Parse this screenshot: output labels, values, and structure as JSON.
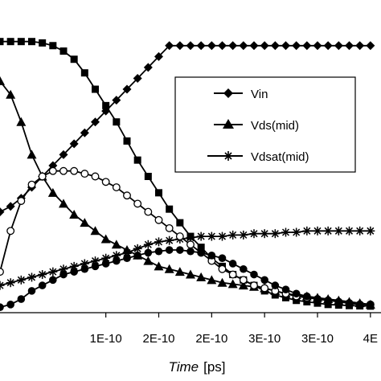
{
  "chart_data": {
    "type": "line",
    "xlabel": {
      "italic": "Time",
      "unit": "[ps]"
    },
    "x_tick_labels": [
      "1E-10",
      "2E-10",
      "2E-10",
      "3E-10",
      "3E-10",
      "4E"
    ],
    "x_tick_values": [
      0.1,
      0.15,
      0.2,
      0.25,
      0.3,
      0.35
    ],
    "xlim": [
      0.0,
      0.36
    ],
    "ylim": [
      0.0,
      1.0
    ],
    "grid": false,
    "legend_placement": "top-right",
    "series": [
      {
        "name": "Vin",
        "marker": "diamond",
        "x": [
          0.0,
          0.01,
          0.02,
          0.03,
          0.04,
          0.05,
          0.06,
          0.07,
          0.08,
          0.09,
          0.1,
          0.11,
          0.12,
          0.13,
          0.14,
          0.15,
          0.16,
          0.17,
          0.18,
          0.19,
          0.2,
          0.21,
          0.22,
          0.23,
          0.24,
          0.25,
          0.26,
          0.27,
          0.28,
          0.29,
          0.3,
          0.31,
          0.32,
          0.33,
          0.34,
          0.35
        ],
        "y": [
          0.37,
          0.39,
          0.42,
          0.46,
          0.5,
          0.54,
          0.58,
          0.62,
          0.66,
          0.7,
          0.74,
          0.78,
          0.82,
          0.86,
          0.9,
          0.94,
          0.98,
          0.98,
          0.98,
          0.98,
          0.98,
          0.98,
          0.98,
          0.98,
          0.98,
          0.98,
          0.98,
          0.98,
          0.98,
          0.98,
          0.98,
          0.98,
          0.98,
          0.98,
          0.98,
          0.98
        ]
      },
      {
        "name": "Vds(mid)",
        "marker": "triangle",
        "x": [
          0.0,
          0.01,
          0.02,
          0.03,
          0.04,
          0.05,
          0.06,
          0.07,
          0.08,
          0.09,
          0.1,
          0.11,
          0.12,
          0.13,
          0.14,
          0.15,
          0.16,
          0.17,
          0.18,
          0.19,
          0.2,
          0.21,
          0.22,
          0.23,
          0.24,
          0.25,
          0.26,
          0.27,
          0.28,
          0.29,
          0.3,
          0.31,
          0.32,
          0.33,
          0.34,
          0.35
        ],
        "y": [
          0.85,
          0.8,
          0.7,
          0.58,
          0.5,
          0.44,
          0.4,
          0.36,
          0.33,
          0.3,
          0.27,
          0.25,
          0.23,
          0.21,
          0.19,
          0.17,
          0.16,
          0.15,
          0.14,
          0.13,
          0.12,
          0.11,
          0.105,
          0.1,
          0.095,
          0.09,
          0.08,
          0.07,
          0.065,
          0.06,
          0.055,
          0.05,
          0.045,
          0.04,
          0.035,
          0.03
        ]
      },
      {
        "name": "Vdsat(mid)",
        "marker": "asterisk",
        "x": [
          0.0,
          0.01,
          0.02,
          0.03,
          0.04,
          0.05,
          0.06,
          0.07,
          0.08,
          0.09,
          0.1,
          0.11,
          0.12,
          0.13,
          0.14,
          0.15,
          0.16,
          0.17,
          0.18,
          0.19,
          0.2,
          0.21,
          0.22,
          0.23,
          0.24,
          0.25,
          0.26,
          0.27,
          0.28,
          0.29,
          0.3,
          0.31,
          0.32,
          0.33,
          0.34,
          0.35
        ],
        "y": [
          0.1,
          0.11,
          0.12,
          0.13,
          0.14,
          0.15,
          0.16,
          0.17,
          0.18,
          0.19,
          0.2,
          0.21,
          0.22,
          0.235,
          0.25,
          0.26,
          0.265,
          0.27,
          0.275,
          0.28,
          0.28,
          0.28,
          0.285,
          0.285,
          0.29,
          0.29,
          0.29,
          0.295,
          0.295,
          0.3,
          0.3,
          0.3,
          0.3,
          0.3,
          0.3,
          0.3
        ]
      },
      {
        "marker": "square",
        "x": [
          0.0,
          0.01,
          0.02,
          0.03,
          0.04,
          0.05,
          0.06,
          0.07,
          0.08,
          0.09,
          0.1,
          0.11,
          0.12,
          0.13,
          0.14,
          0.15,
          0.16,
          0.17,
          0.18,
          0.19,
          0.2,
          0.21,
          0.22,
          0.23,
          0.24,
          0.25,
          0.26,
          0.27,
          0.28,
          0.29,
          0.3,
          0.31,
          0.32,
          0.33,
          0.34,
          0.35
        ],
        "y": [
          0.995,
          0.995,
          0.995,
          0.995,
          0.99,
          0.98,
          0.96,
          0.93,
          0.88,
          0.82,
          0.76,
          0.7,
          0.63,
          0.56,
          0.5,
          0.44,
          0.38,
          0.33,
          0.28,
          0.24,
          0.2,
          0.17,
          0.14,
          0.12,
          0.1,
          0.08,
          0.065,
          0.055,
          0.045,
          0.04,
          0.035,
          0.03,
          0.028,
          0.026,
          0.025,
          0.024
        ]
      },
      {
        "marker": "open-circle",
        "x": [
          0.0,
          0.01,
          0.02,
          0.03,
          0.04,
          0.05,
          0.06,
          0.07,
          0.08,
          0.09,
          0.1,
          0.11,
          0.12,
          0.13,
          0.14,
          0.15,
          0.16,
          0.17,
          0.18,
          0.19,
          0.2,
          0.21,
          0.22,
          0.23,
          0.24,
          0.25,
          0.26,
          0.27,
          0.28,
          0.29,
          0.3,
          0.31,
          0.32,
          0.33,
          0.34,
          0.35
        ],
        "y": [
          0.15,
          0.3,
          0.41,
          0.47,
          0.5,
          0.52,
          0.52,
          0.52,
          0.51,
          0.5,
          0.48,
          0.46,
          0.43,
          0.4,
          0.37,
          0.34,
          0.31,
          0.28,
          0.25,
          0.22,
          0.19,
          0.16,
          0.14,
          0.12,
          0.1,
          0.09,
          0.08,
          0.07,
          0.06,
          0.055,
          0.05,
          0.045,
          0.04,
          0.035,
          0.03,
          0.03
        ]
      },
      {
        "marker": "filled-circle",
        "x": [
          0.0,
          0.01,
          0.02,
          0.03,
          0.04,
          0.05,
          0.06,
          0.07,
          0.08,
          0.09,
          0.1,
          0.11,
          0.12,
          0.13,
          0.14,
          0.15,
          0.16,
          0.17,
          0.18,
          0.19,
          0.2,
          0.21,
          0.22,
          0.23,
          0.24,
          0.25,
          0.26,
          0.27,
          0.28,
          0.29,
          0.3,
          0.31,
          0.32,
          0.33,
          0.34,
          0.35
        ],
        "y": [
          0.02,
          0.03,
          0.05,
          0.08,
          0.1,
          0.12,
          0.14,
          0.15,
          0.16,
          0.17,
          0.18,
          0.19,
          0.2,
          0.21,
          0.22,
          0.225,
          0.23,
          0.23,
          0.225,
          0.22,
          0.21,
          0.2,
          0.18,
          0.16,
          0.14,
          0.12,
          0.1,
          0.085,
          0.07,
          0.06,
          0.05,
          0.045,
          0.04,
          0.035,
          0.03,
          0.03
        ]
      }
    ]
  }
}
